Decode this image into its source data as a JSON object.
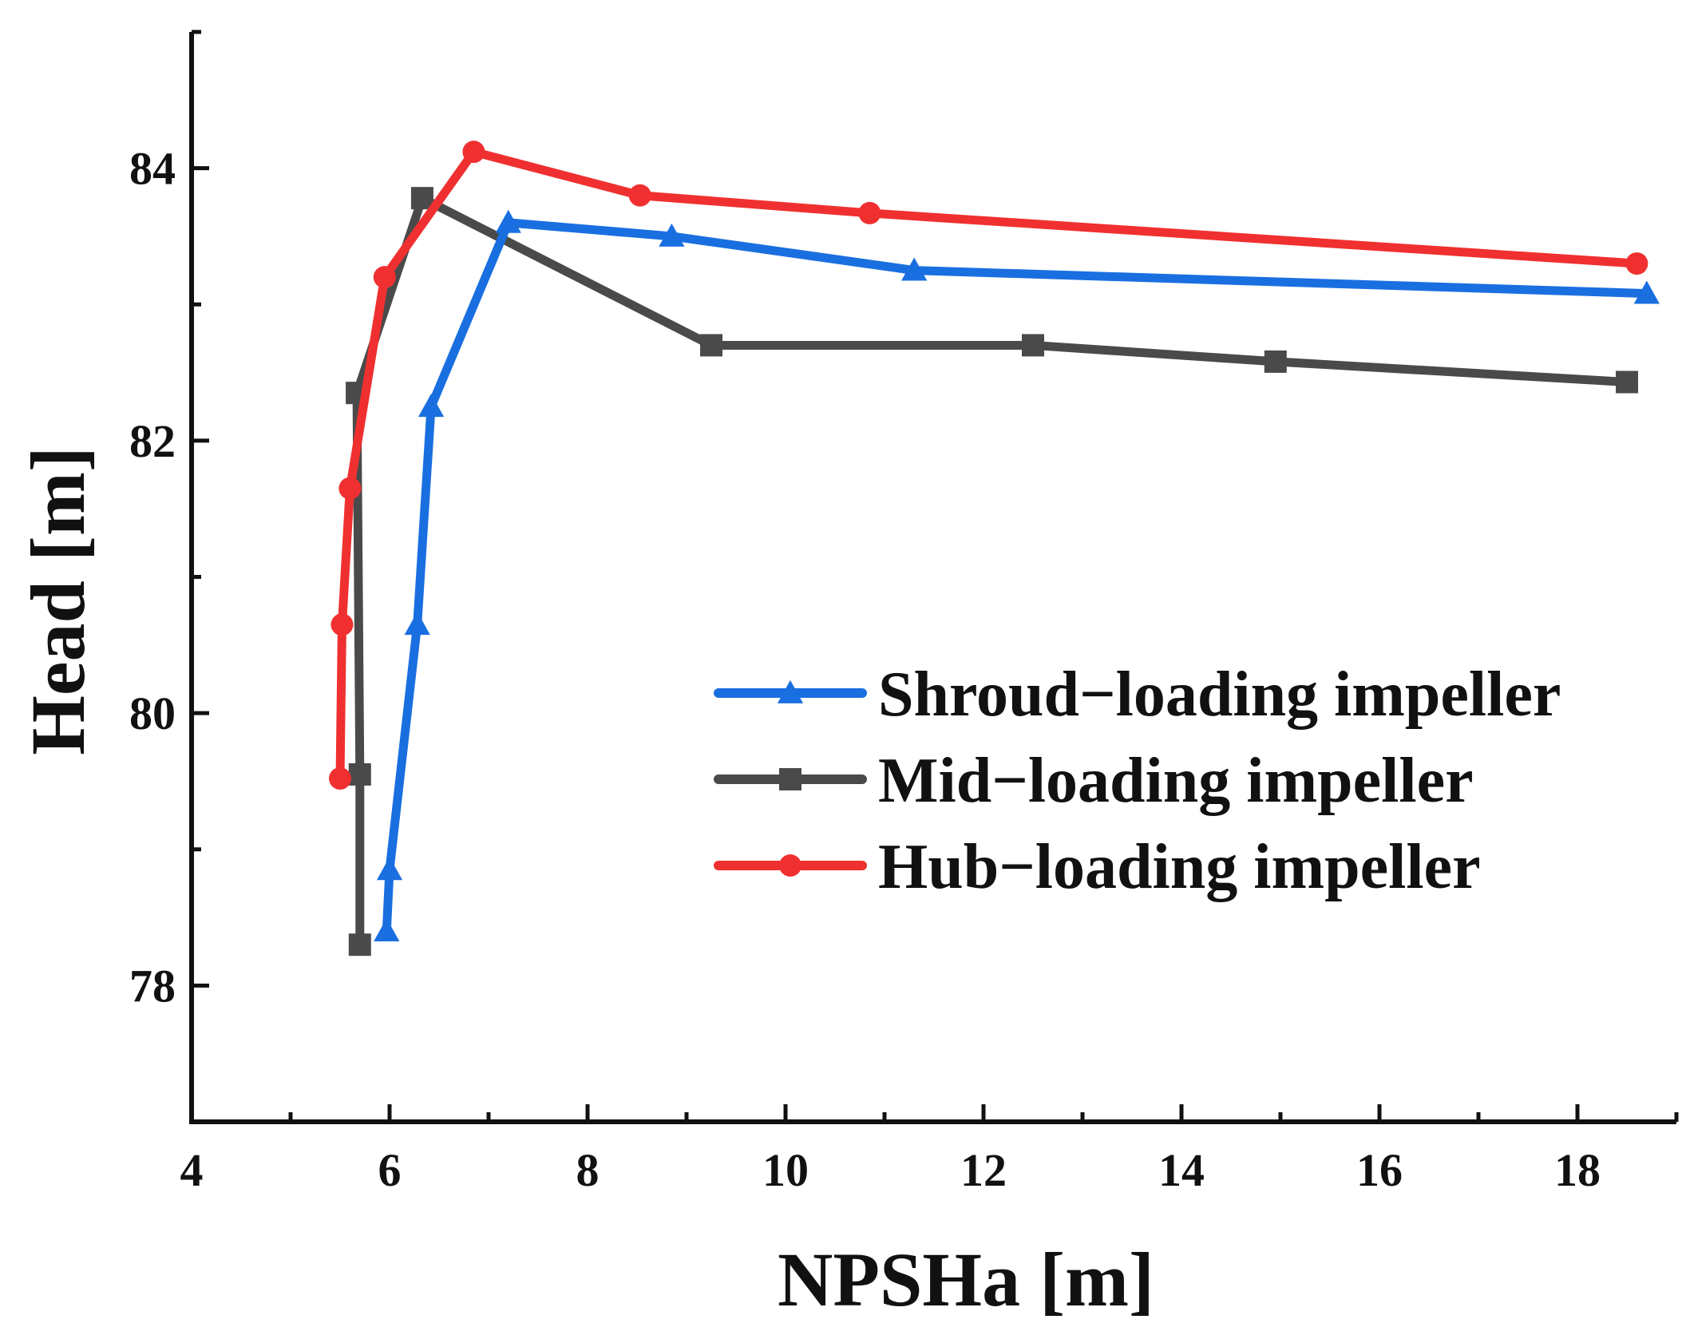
{
  "chart_data": {
    "type": "line",
    "title": "",
    "xlabel": "NPSHa [m]",
    "ylabel": "Head [m]",
    "xlim": [
      4,
      19
    ],
    "ylim": [
      77,
      85
    ],
    "xticks": [
      4,
      6,
      8,
      10,
      12,
      14,
      16,
      18
    ],
    "yticks": [
      78,
      80,
      82,
      84
    ],
    "legend_position": "center-right",
    "series": [
      {
        "name": "Shroud−loading impeller",
        "color": "#1a6fe0",
        "marker": "triangle",
        "x": [
          5.97,
          6.0,
          6.28,
          6.42,
          7.2,
          8.85,
          11.3,
          18.7
        ],
        "y": [
          78.4,
          78.85,
          80.65,
          82.25,
          83.6,
          83.5,
          83.25,
          83.08
        ]
      },
      {
        "name": "Mid−loading impeller",
        "color": "#4a4a4a",
        "marker": "square",
        "x": [
          5.7,
          5.7,
          5.67,
          6.33,
          9.25,
          12.5,
          14.95,
          18.5
        ],
        "y": [
          78.3,
          79.55,
          82.35,
          83.78,
          82.7,
          82.7,
          82.58,
          82.43
        ]
      },
      {
        "name": "Hub−loading impeller",
        "color": "#f03030",
        "marker": "circle",
        "x": [
          5.5,
          5.52,
          5.6,
          5.95,
          6.85,
          8.53,
          10.85,
          18.6
        ],
        "y": [
          79.52,
          80.65,
          81.65,
          83.2,
          84.12,
          83.8,
          83.67,
          83.3
        ]
      }
    ]
  }
}
